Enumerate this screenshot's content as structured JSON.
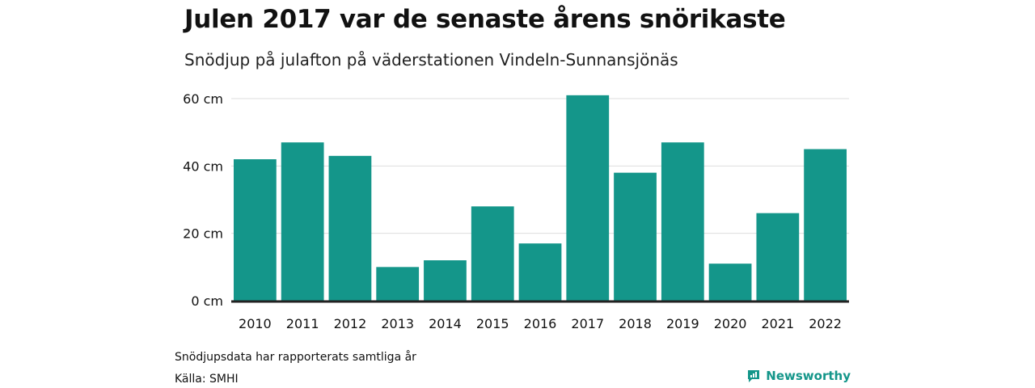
{
  "title": "Julen 2017 var de senaste årens snörikaste",
  "subtitle": "Snödjup på julafton på väderstationen Vindeln-Sunnansjönäs",
  "footnote": "Snödjupsdata har rapporterats samtliga år",
  "source": "Källa: SMHI",
  "brand": {
    "name": "Newsworthy",
    "icon": "newsworthy-logo-icon",
    "color": "#14968a"
  },
  "chart_data": {
    "type": "bar",
    "categories": [
      "2010",
      "2011",
      "2012",
      "2013",
      "2014",
      "2015",
      "2016",
      "2017",
      "2018",
      "2019",
      "2020",
      "2021",
      "2022"
    ],
    "values": [
      42,
      47,
      43,
      10,
      12,
      28,
      17,
      61,
      38,
      47,
      11,
      26,
      45
    ],
    "ylim": [
      0,
      60
    ],
    "yticks": [
      0,
      20,
      40,
      60
    ],
    "ytick_labels": [
      "0 cm",
      "20 cm",
      "40 cm",
      "60 cm"
    ],
    "bar_color": "#14968a",
    "grid": true,
    "legend": "none"
  }
}
